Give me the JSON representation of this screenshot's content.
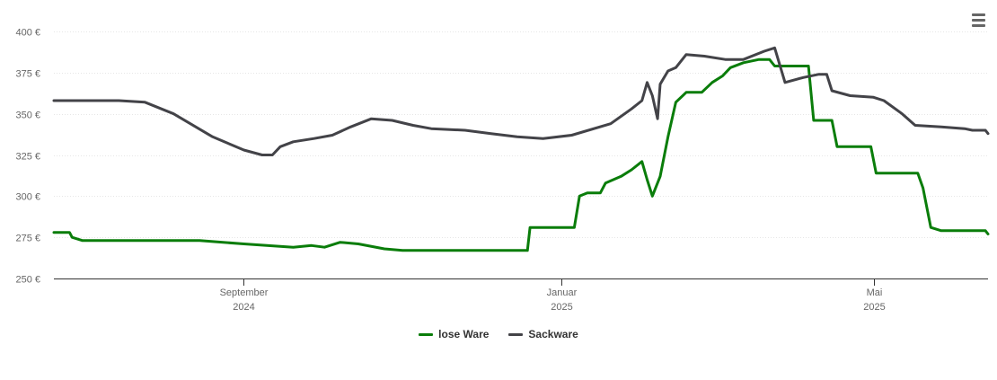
{
  "chart_data": {
    "type": "line",
    "y_unit": "€",
    "ylim": [
      250,
      400
    ],
    "yticks": [
      "250 €",
      "275 €",
      "300 €",
      "325 €",
      "350 €",
      "375 €",
      "400 €"
    ],
    "ytick_values": [
      250,
      275,
      300,
      325,
      350,
      375,
      400
    ],
    "xlim": [
      "2024-06-20",
      "2025-06-14"
    ],
    "xticks": [
      {
        "date": "2024-09-01",
        "line1": "September",
        "line2": "2024"
      },
      {
        "date": "2025-01-01",
        "line1": "Januar",
        "line2": "2025"
      },
      {
        "date": "2025-05-01",
        "line1": "Mai",
        "line2": "2025"
      }
    ],
    "grid": true,
    "legend_position": "bottom-center",
    "series": [
      {
        "name": "lose Ware",
        "color": "#0a7d0a",
        "points": [
          [
            "2024-06-20",
            278
          ],
          [
            "2024-06-26",
            278
          ],
          [
            "2024-06-27",
            275
          ],
          [
            "2024-07-01",
            273
          ],
          [
            "2024-07-20",
            273
          ],
          [
            "2024-08-15",
            273
          ],
          [
            "2024-09-01",
            271
          ],
          [
            "2024-09-20",
            269
          ],
          [
            "2024-09-27",
            270
          ],
          [
            "2024-10-02",
            269
          ],
          [
            "2024-10-08",
            272
          ],
          [
            "2024-10-15",
            271
          ],
          [
            "2024-10-25",
            268
          ],
          [
            "2024-11-01",
            267
          ],
          [
            "2024-11-20",
            267
          ],
          [
            "2024-12-15",
            267
          ],
          [
            "2024-12-19",
            267
          ],
          [
            "2024-12-20",
            281
          ],
          [
            "2025-01-06",
            281
          ],
          [
            "2025-01-08",
            300
          ],
          [
            "2025-01-11",
            302
          ],
          [
            "2025-01-16",
            302
          ],
          [
            "2025-01-18",
            308
          ],
          [
            "2025-01-24",
            312
          ],
          [
            "2025-01-28",
            316
          ],
          [
            "2025-02-01",
            321
          ],
          [
            "2025-02-03",
            310
          ],
          [
            "2025-02-05",
            300
          ],
          [
            "2025-02-08",
            312
          ],
          [
            "2025-02-11",
            336
          ],
          [
            "2025-02-14",
            357
          ],
          [
            "2025-02-18",
            363
          ],
          [
            "2025-02-24",
            363
          ],
          [
            "2025-02-28",
            369
          ],
          [
            "2025-03-04",
            373
          ],
          [
            "2025-03-07",
            378
          ],
          [
            "2025-03-12",
            381
          ],
          [
            "2025-03-18",
            383
          ],
          [
            "2025-03-22",
            383
          ],
          [
            "2025-03-24",
            379
          ],
          [
            "2025-04-06",
            379
          ],
          [
            "2025-04-08",
            346
          ],
          [
            "2025-04-15",
            346
          ],
          [
            "2025-04-17",
            330
          ],
          [
            "2025-04-30",
            330
          ],
          [
            "2025-05-02",
            314
          ],
          [
            "2025-05-18",
            314
          ],
          [
            "2025-05-20",
            305
          ],
          [
            "2025-05-23",
            281
          ],
          [
            "2025-05-27",
            279
          ],
          [
            "2025-06-13",
            279
          ],
          [
            "2025-06-14",
            277
          ]
        ]
      },
      {
        "name": "Sackware",
        "color": "#434348",
        "points": [
          [
            "2024-06-20",
            358
          ],
          [
            "2024-07-15",
            358
          ],
          [
            "2024-07-25",
            357
          ],
          [
            "2024-08-05",
            350
          ],
          [
            "2024-08-20",
            336
          ],
          [
            "2024-09-01",
            328
          ],
          [
            "2024-09-08",
            325
          ],
          [
            "2024-09-12",
            325
          ],
          [
            "2024-09-15",
            330
          ],
          [
            "2024-09-20",
            333
          ],
          [
            "2024-09-28",
            335
          ],
          [
            "2024-10-05",
            337
          ],
          [
            "2024-10-12",
            342
          ],
          [
            "2024-10-20",
            347
          ],
          [
            "2024-10-28",
            346
          ],
          [
            "2024-11-05",
            343
          ],
          [
            "2024-11-12",
            341
          ],
          [
            "2024-11-25",
            340
          ],
          [
            "2024-12-05",
            338
          ],
          [
            "2024-12-15",
            336
          ],
          [
            "2024-12-25",
            335
          ],
          [
            "2025-01-05",
            337
          ],
          [
            "2025-01-20",
            344
          ],
          [
            "2025-01-28",
            353
          ],
          [
            "2025-02-01",
            358
          ],
          [
            "2025-02-03",
            369
          ],
          [
            "2025-02-05",
            361
          ],
          [
            "2025-02-07",
            347
          ],
          [
            "2025-02-08",
            368
          ],
          [
            "2025-02-11",
            376
          ],
          [
            "2025-02-14",
            378
          ],
          [
            "2025-02-18",
            386
          ],
          [
            "2025-02-25",
            385
          ],
          [
            "2025-03-05",
            383
          ],
          [
            "2025-03-12",
            383
          ],
          [
            "2025-03-20",
            388
          ],
          [
            "2025-03-24",
            390
          ],
          [
            "2025-03-28",
            369
          ],
          [
            "2025-04-04",
            372
          ],
          [
            "2025-04-10",
            374
          ],
          [
            "2025-04-13",
            374
          ],
          [
            "2025-04-15",
            364
          ],
          [
            "2025-04-22",
            361
          ],
          [
            "2025-05-01",
            360
          ],
          [
            "2025-05-05",
            358
          ],
          [
            "2025-05-12",
            350
          ],
          [
            "2025-05-17",
            343
          ],
          [
            "2025-05-27",
            342
          ],
          [
            "2025-06-05",
            341
          ],
          [
            "2025-06-08",
            340
          ],
          [
            "2025-06-13",
            340
          ],
          [
            "2025-06-14",
            338
          ]
        ]
      }
    ]
  },
  "icons": {
    "menu": "hamburger-menu-icon"
  }
}
